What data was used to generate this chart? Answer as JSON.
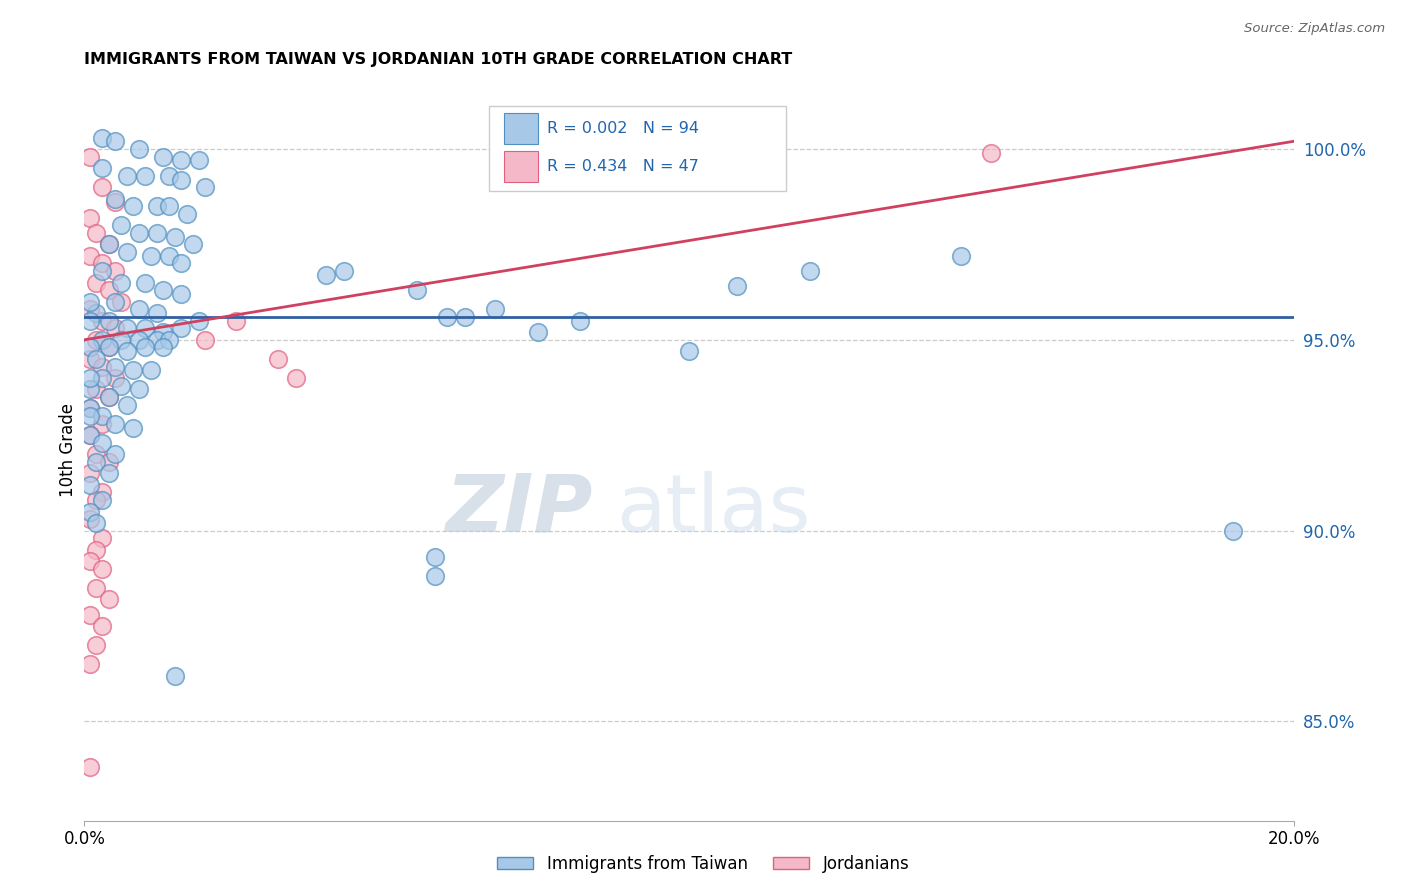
{
  "title": "IMMIGRANTS FROM TAIWAN VS JORDANIAN 10TH GRADE CORRELATION CHART",
  "source": "Source: ZipAtlas.com",
  "ylabel": "10th Grade",
  "ytick_labels": [
    "85.0%",
    "90.0%",
    "95.0%",
    "100.0%"
  ],
  "ytick_values": [
    0.85,
    0.9,
    0.95,
    1.0
  ],
  "xmin": 0.0,
  "xmax": 0.2,
  "ymin": 0.824,
  "ymax": 1.018,
  "legend_blue_label": "Immigrants from Taiwan",
  "legend_pink_label": "Jordanians",
  "R_blue": "0.002",
  "N_blue": "94",
  "R_pink": "0.434",
  "N_pink": "47",
  "blue_color": "#a8c8e8",
  "pink_color": "#f4b8c8",
  "blue_edge_color": "#5090c0",
  "pink_edge_color": "#e06080",
  "blue_line_color": "#3060a0",
  "pink_line_color": "#d04060",
  "watermark_zip": "ZIP",
  "watermark_atlas": "atlas",
  "blue_trend_y0": 0.956,
  "blue_trend_y1": 0.956,
  "pink_trend_y0": 0.95,
  "pink_trend_y1": 1.002,
  "blue_points": [
    [
      0.003,
      1.003
    ],
    [
      0.005,
      1.002
    ],
    [
      0.009,
      1.0
    ],
    [
      0.013,
      0.998
    ],
    [
      0.016,
      0.997
    ],
    [
      0.019,
      0.997
    ],
    [
      0.003,
      0.995
    ],
    [
      0.007,
      0.993
    ],
    [
      0.01,
      0.993
    ],
    [
      0.014,
      0.993
    ],
    [
      0.016,
      0.992
    ],
    [
      0.02,
      0.99
    ],
    [
      0.005,
      0.987
    ],
    [
      0.008,
      0.985
    ],
    [
      0.012,
      0.985
    ],
    [
      0.014,
      0.985
    ],
    [
      0.017,
      0.983
    ],
    [
      0.006,
      0.98
    ],
    [
      0.009,
      0.978
    ],
    [
      0.012,
      0.978
    ],
    [
      0.015,
      0.977
    ],
    [
      0.018,
      0.975
    ],
    [
      0.004,
      0.975
    ],
    [
      0.007,
      0.973
    ],
    [
      0.011,
      0.972
    ],
    [
      0.014,
      0.972
    ],
    [
      0.016,
      0.97
    ],
    [
      0.003,
      0.968
    ],
    [
      0.006,
      0.965
    ],
    [
      0.01,
      0.965
    ],
    [
      0.013,
      0.963
    ],
    [
      0.016,
      0.962
    ],
    [
      0.005,
      0.96
    ],
    [
      0.009,
      0.958
    ],
    [
      0.012,
      0.957
    ],
    [
      0.002,
      0.957
    ],
    [
      0.004,
      0.955
    ],
    [
      0.007,
      0.953
    ],
    [
      0.01,
      0.953
    ],
    [
      0.013,
      0.952
    ],
    [
      0.016,
      0.953
    ],
    [
      0.019,
      0.955
    ],
    [
      0.003,
      0.95
    ],
    [
      0.006,
      0.95
    ],
    [
      0.009,
      0.95
    ],
    [
      0.012,
      0.95
    ],
    [
      0.014,
      0.95
    ],
    [
      0.001,
      0.948
    ],
    [
      0.004,
      0.948
    ],
    [
      0.007,
      0.947
    ],
    [
      0.01,
      0.948
    ],
    [
      0.013,
      0.948
    ],
    [
      0.002,
      0.945
    ],
    [
      0.005,
      0.943
    ],
    [
      0.008,
      0.942
    ],
    [
      0.011,
      0.942
    ],
    [
      0.003,
      0.94
    ],
    [
      0.006,
      0.938
    ],
    [
      0.009,
      0.937
    ],
    [
      0.001,
      0.937
    ],
    [
      0.004,
      0.935
    ],
    [
      0.007,
      0.933
    ],
    [
      0.001,
      0.932
    ],
    [
      0.003,
      0.93
    ],
    [
      0.005,
      0.928
    ],
    [
      0.008,
      0.927
    ],
    [
      0.001,
      0.925
    ],
    [
      0.003,
      0.923
    ],
    [
      0.005,
      0.92
    ],
    [
      0.002,
      0.918
    ],
    [
      0.004,
      0.915
    ],
    [
      0.001,
      0.912
    ],
    [
      0.003,
      0.908
    ],
    [
      0.001,
      0.905
    ],
    [
      0.002,
      0.902
    ],
    [
      0.04,
      0.967
    ],
    [
      0.043,
      0.968
    ],
    [
      0.055,
      0.963
    ],
    [
      0.06,
      0.956
    ],
    [
      0.063,
      0.956
    ],
    [
      0.068,
      0.958
    ],
    [
      0.075,
      0.952
    ],
    [
      0.082,
      0.955
    ],
    [
      0.1,
      0.947
    ],
    [
      0.108,
      0.964
    ],
    [
      0.12,
      0.968
    ],
    [
      0.145,
      0.972
    ],
    [
      0.19,
      0.9
    ],
    [
      0.058,
      0.893
    ],
    [
      0.058,
      0.888
    ],
    [
      0.015,
      0.862
    ],
    [
      0.001,
      0.96
    ],
    [
      0.001,
      0.955
    ],
    [
      0.001,
      0.94
    ],
    [
      0.001,
      0.93
    ]
  ],
  "pink_points": [
    [
      0.001,
      0.998
    ],
    [
      0.15,
      0.999
    ],
    [
      0.003,
      0.99
    ],
    [
      0.005,
      0.986
    ],
    [
      0.001,
      0.982
    ],
    [
      0.002,
      0.978
    ],
    [
      0.004,
      0.975
    ],
    [
      0.001,
      0.972
    ],
    [
      0.003,
      0.97
    ],
    [
      0.005,
      0.968
    ],
    [
      0.002,
      0.965
    ],
    [
      0.004,
      0.963
    ],
    [
      0.006,
      0.96
    ],
    [
      0.001,
      0.958
    ],
    [
      0.003,
      0.955
    ],
    [
      0.005,
      0.953
    ],
    [
      0.002,
      0.95
    ],
    [
      0.004,
      0.948
    ],
    [
      0.001,
      0.945
    ],
    [
      0.003,
      0.943
    ],
    [
      0.005,
      0.94
    ],
    [
      0.002,
      0.937
    ],
    [
      0.004,
      0.935
    ],
    [
      0.001,
      0.932
    ],
    [
      0.003,
      0.928
    ],
    [
      0.001,
      0.925
    ],
    [
      0.002,
      0.92
    ],
    [
      0.004,
      0.918
    ],
    [
      0.001,
      0.915
    ],
    [
      0.003,
      0.91
    ],
    [
      0.002,
      0.908
    ],
    [
      0.001,
      0.903
    ],
    [
      0.003,
      0.898
    ],
    [
      0.002,
      0.895
    ],
    [
      0.001,
      0.892
    ],
    [
      0.003,
      0.89
    ],
    [
      0.002,
      0.885
    ],
    [
      0.004,
      0.882
    ],
    [
      0.001,
      0.878
    ],
    [
      0.003,
      0.875
    ],
    [
      0.002,
      0.87
    ],
    [
      0.001,
      0.865
    ],
    [
      0.025,
      0.955
    ],
    [
      0.032,
      0.945
    ],
    [
      0.035,
      0.94
    ],
    [
      0.02,
      0.95
    ],
    [
      0.001,
      0.838
    ]
  ]
}
